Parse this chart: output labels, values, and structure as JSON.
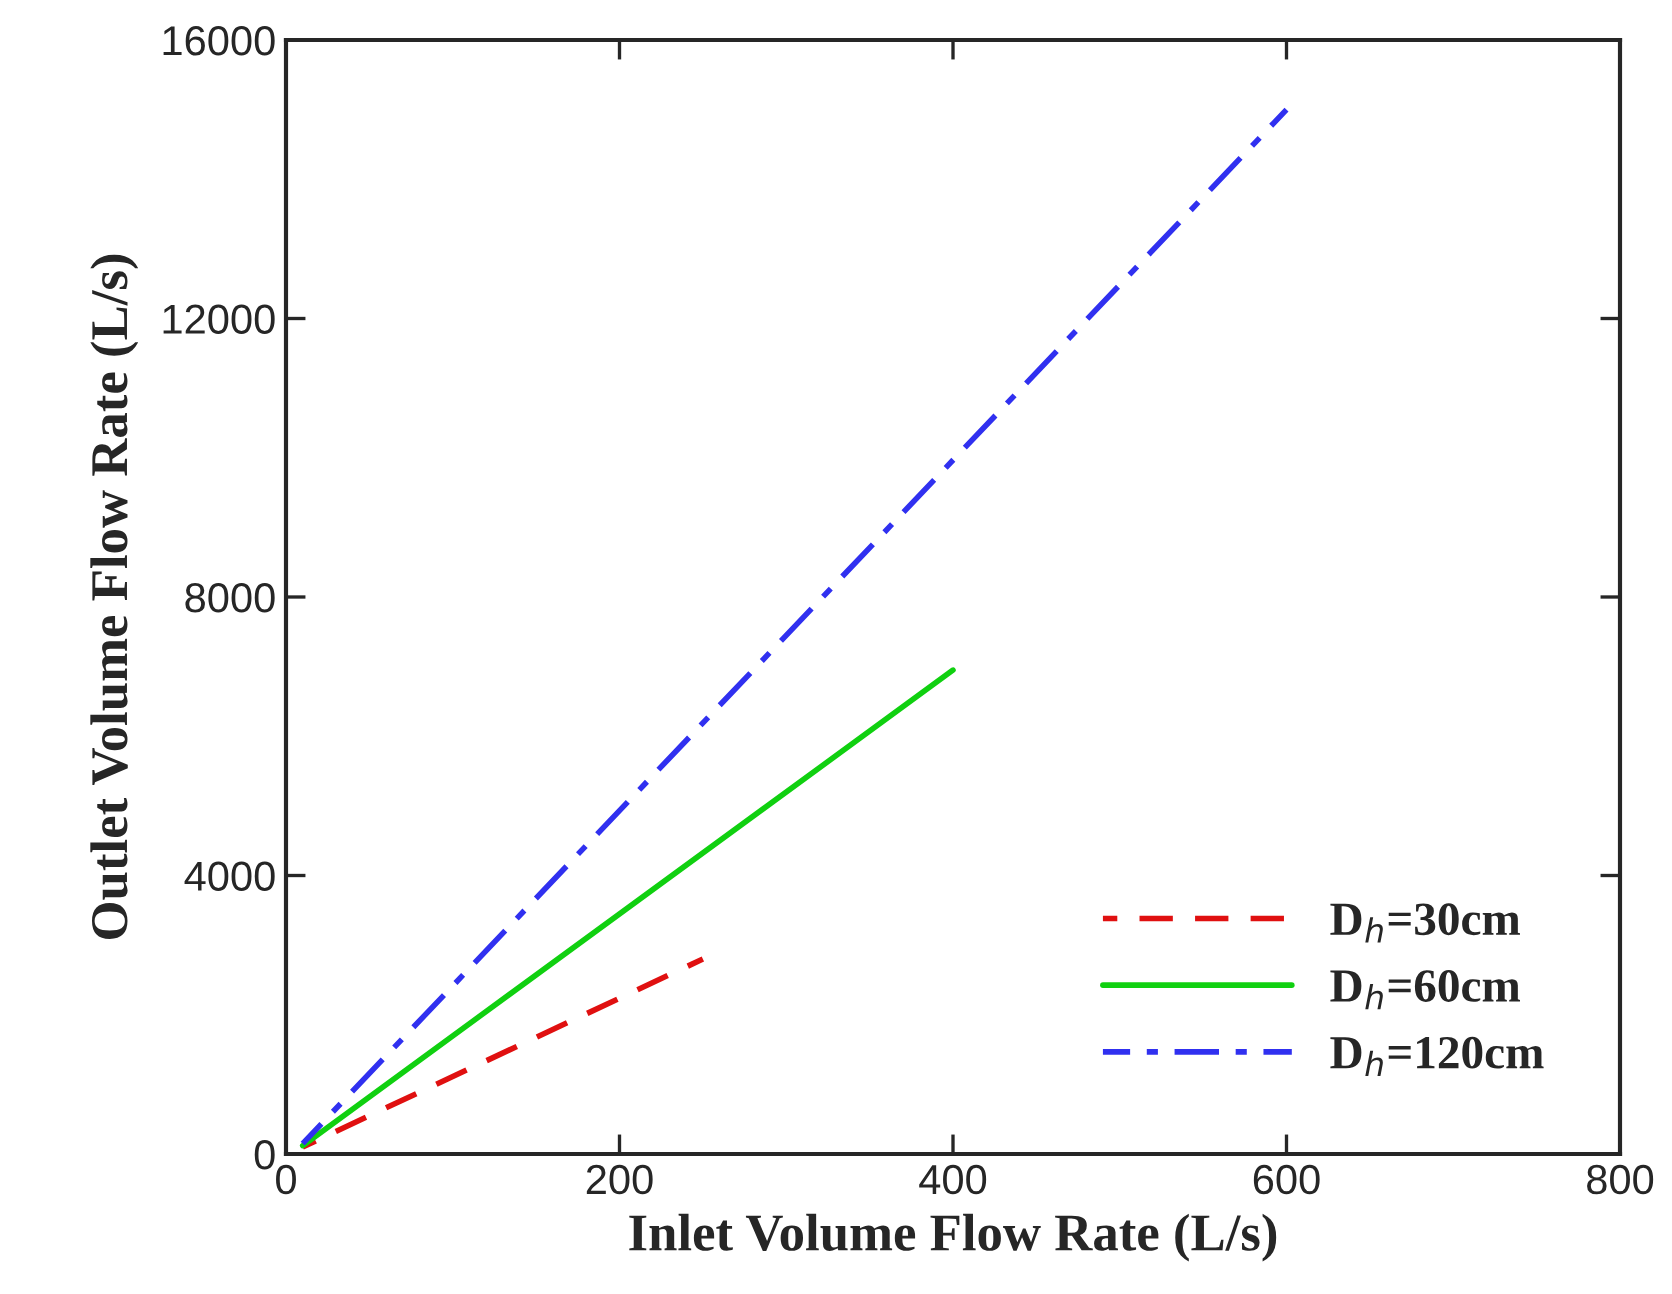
{
  "chart_data": {
    "type": "line",
    "xlabel": "Inlet Volume Flow Rate (L/s)",
    "ylabel": "Outlet Volume Flow Rate (L/s)",
    "series": [
      {
        "name": "D$_{h}$=30cm",
        "color": "#e01010",
        "line_style": "dashed",
        "x": [
          10,
          250
        ],
        "values": [
          100,
          2800
        ]
      },
      {
        "name": "D$_{h}$=60cm",
        "color": "#10d010",
        "line_style": "solid",
        "x": [
          10,
          400
        ],
        "values": [
          120,
          6950
        ]
      },
      {
        "name": "D$_{h}$=120cm",
        "color": "#3030f0",
        "line_style": "dashdot",
        "x": [
          10,
          600
        ],
        "values": [
          150,
          15000
        ]
      }
    ],
    "xlim": [
      0,
      800
    ],
    "xticks": [
      0,
      200,
      400,
      600,
      800
    ],
    "ylim": [
      0,
      16000
    ],
    "yticks": [
      0,
      4000,
      8000,
      12000,
      16000
    ],
    "grid": false,
    "legend": "bottom right",
    "marker": "none"
  }
}
